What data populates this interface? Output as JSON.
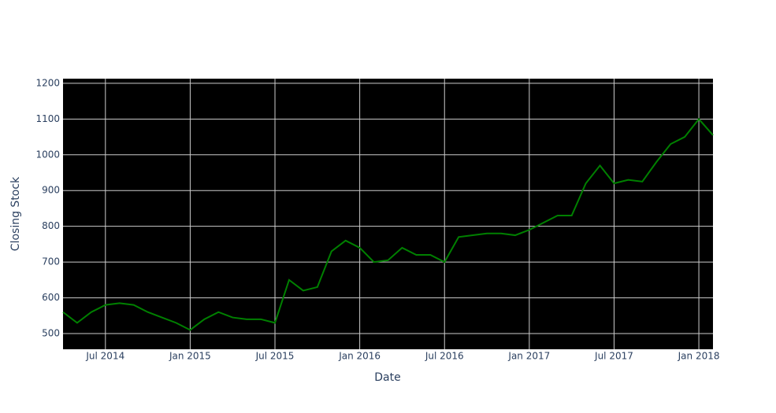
{
  "chart_data": {
    "type": "line",
    "x_label": "Date",
    "y_label": "Closing Stock",
    "x": [
      "2014-04",
      "2014-05",
      "2014-06",
      "2014-07",
      "2014-08",
      "2014-09",
      "2014-10",
      "2014-11",
      "2014-12",
      "2015-01",
      "2015-02",
      "2015-03",
      "2015-04",
      "2015-05",
      "2015-06",
      "2015-07",
      "2015-08",
      "2015-09",
      "2015-10",
      "2015-11",
      "2015-12",
      "2016-01",
      "2016-02",
      "2016-03",
      "2016-04",
      "2016-05",
      "2016-06",
      "2016-07",
      "2016-08",
      "2016-09",
      "2016-10",
      "2016-11",
      "2016-12",
      "2017-01",
      "2017-02",
      "2017-03",
      "2017-04",
      "2017-05",
      "2017-06",
      "2017-07",
      "2017-08",
      "2017-09",
      "2017-10",
      "2017-11",
      "2017-12",
      "2018-01",
      "2018-02"
    ],
    "series": [
      {
        "name": "Closing Stock",
        "color": "#008000",
        "values": [
          560,
          530,
          560,
          580,
          585,
          580,
          560,
          545,
          530,
          510,
          540,
          560,
          545,
          540,
          540,
          530,
          650,
          620,
          630,
          730,
          760,
          740,
          700,
          705,
          740,
          720,
          720,
          700,
          770,
          775,
          780,
          780,
          775,
          790,
          810,
          830,
          830,
          920,
          970,
          920,
          930,
          925,
          980,
          1030,
          1050,
          1100,
          1055
        ]
      }
    ],
    "xlim": [
      "2014-04",
      "2018-02"
    ],
    "xticks": [
      {
        "value": "2014-07",
        "label": "Jul 2014"
      },
      {
        "value": "2015-01",
        "label": "Jan 2015"
      },
      {
        "value": "2015-07",
        "label": "Jul 2015"
      },
      {
        "value": "2016-01",
        "label": "Jan 2016"
      },
      {
        "value": "2016-07",
        "label": "Jul 2016"
      },
      {
        "value": "2017-01",
        "label": "Jan 2017"
      },
      {
        "value": "2017-07",
        "label": "Jul 2017"
      },
      {
        "value": "2018-01",
        "label": "Jan 2018"
      }
    ],
    "ylim": [
      456,
      1213
    ],
    "yticks": [
      500,
      600,
      700,
      800,
      900,
      1000,
      1100,
      1200
    ],
    "grid": true,
    "background": "#000000"
  }
}
